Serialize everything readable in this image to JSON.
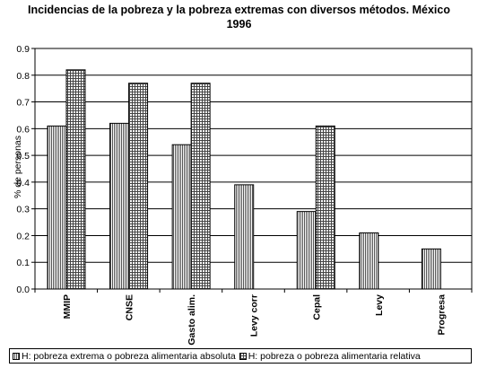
{
  "title_line1": "Incidencias de la pobreza y la pobreza extremas con diversos métodos. México",
  "title_line2": "1996",
  "chart_data": {
    "type": "bar",
    "title": "Incidencias de la pobreza y la pobreza extremas con diversos métodos. México 1996",
    "ylabel": "% de personas",
    "xlabel": "",
    "ylim": [
      0,
      0.9
    ],
    "yticks": [
      "0.0",
      "0.1",
      "0.2",
      "0.3",
      "0.4",
      "0.5",
      "0.6",
      "0.7",
      "0.8",
      "0.9"
    ],
    "categories": [
      "MMIP",
      "CNSE",
      "Gasto alim.",
      "Levy corr",
      "Cepal",
      "Levy",
      "Progresa"
    ],
    "series": [
      {
        "name": "H: pobreza extrema o pobreza alimentaria absoluta",
        "values": [
          0.61,
          0.62,
          0.54,
          0.39,
          0.29,
          0.21,
          0.15
        ]
      },
      {
        "name": "H: pobreza o pobreza alimentaria relativa",
        "values": [
          0.82,
          0.77,
          0.77,
          null,
          0.61,
          null,
          null
        ]
      }
    ],
    "grid": true,
    "legend": "bottom"
  }
}
